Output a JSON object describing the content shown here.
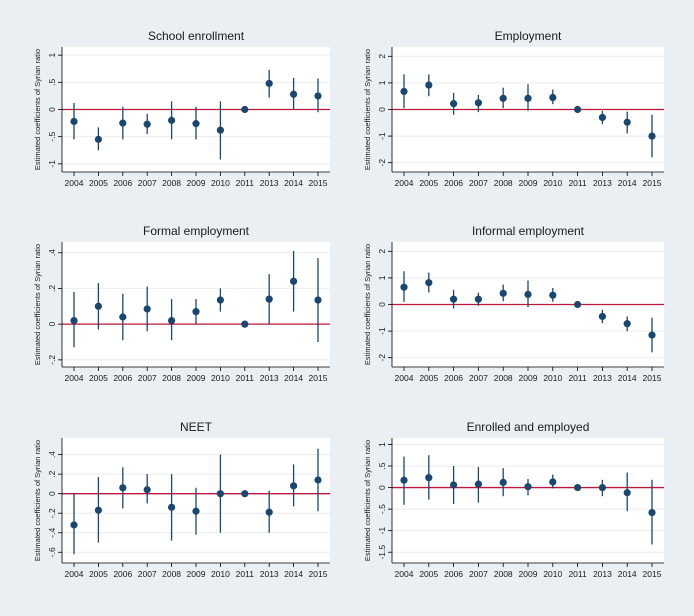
{
  "chart_data": [
    {
      "type": "errorbar",
      "title": "School enrollment",
      "ylabel": "Estimated coefficients of Syrian ratio",
      "xlabel": "",
      "ylim": [
        -1.15,
        1.15
      ],
      "yticks": [
        -1,
        -0.5,
        0,
        0.5,
        1
      ],
      "ytick_labels": [
        "-1",
        "-.5",
        "0",
        ".5",
        "1"
      ],
      "categories": [
        "2004",
        "2005",
        "2006",
        "2007",
        "2008",
        "2009",
        "2010",
        "2011",
        "2013",
        "2014",
        "2015"
      ],
      "values": [
        -0.22,
        -0.55,
        -0.25,
        -0.27,
        -0.2,
        -0.26,
        -0.38,
        0.0,
        0.48,
        0.28,
        0.25
      ],
      "lower": [
        -0.55,
        -0.75,
        -0.55,
        -0.45,
        -0.55,
        -0.55,
        -0.92,
        0.0,
        0.22,
        0.0,
        -0.05
      ],
      "upper": [
        0.12,
        -0.33,
        0.05,
        -0.08,
        0.15,
        0.05,
        0.15,
        0.0,
        0.73,
        0.58,
        0.57
      ],
      "reference_line": 0
    },
    {
      "type": "errorbar",
      "title": "Employment",
      "ylabel": "Estimated coefficients of Syrian ratio",
      "xlabel": "",
      "ylim": [
        -2.35,
        2.35
      ],
      "yticks": [
        -2,
        -1,
        0,
        1,
        2
      ],
      "ytick_labels": [
        "-2",
        "-1",
        "0",
        "1",
        "2"
      ],
      "categories": [
        "2004",
        "2005",
        "2006",
        "2007",
        "2008",
        "2009",
        "2010",
        "2011",
        "2013",
        "2014",
        "2015"
      ],
      "values": [
        0.68,
        0.92,
        0.22,
        0.25,
        0.42,
        0.42,
        0.45,
        0.0,
        -0.3,
        -0.48,
        -1.0
      ],
      "lower": [
        0.05,
        0.5,
        -0.2,
        -0.1,
        0.05,
        -0.05,
        0.2,
        0.0,
        -0.55,
        -0.9,
        -1.8
      ],
      "upper": [
        1.32,
        1.32,
        0.62,
        0.55,
        0.82,
        0.95,
        0.75,
        0.0,
        -0.05,
        -0.08,
        -0.2
      ],
      "reference_line": 0
    },
    {
      "type": "errorbar",
      "title": "Formal employment",
      "ylabel": "Estimated coefficients of Syrian ratio",
      "xlabel": "",
      "ylim": [
        -0.24,
        0.46
      ],
      "yticks": [
        -0.2,
        0,
        0.2,
        0.4
      ],
      "ytick_labels": [
        "-.2",
        "0",
        ".2",
        ".4"
      ],
      "categories": [
        "2004",
        "2005",
        "2006",
        "2007",
        "2008",
        "2009",
        "2010",
        "2011",
        "2013",
        "2014",
        "2015"
      ],
      "values": [
        0.02,
        0.1,
        0.04,
        0.085,
        0.02,
        0.07,
        0.135,
        0.0,
        0.14,
        0.24,
        0.135
      ],
      "lower": [
        -0.13,
        -0.03,
        -0.09,
        -0.04,
        -0.09,
        0.0,
        0.07,
        0.0,
        0.0,
        0.07,
        -0.1
      ],
      "upper": [
        0.18,
        0.23,
        0.17,
        0.21,
        0.14,
        0.14,
        0.2,
        0.0,
        0.28,
        0.41,
        0.37
      ],
      "reference_line": 0
    },
    {
      "type": "errorbar",
      "title": "Informal employment",
      "ylabel": "Estimated coefficients of Syrian ratio",
      "xlabel": "",
      "ylim": [
        -2.35,
        2.35
      ],
      "yticks": [
        -2,
        -1,
        0,
        1,
        2
      ],
      "ytick_labels": [
        "-2",
        "-1",
        "0",
        "1",
        "2"
      ],
      "categories": [
        "2004",
        "2005",
        "2006",
        "2007",
        "2008",
        "2009",
        "2010",
        "2011",
        "2013",
        "2014",
        "2015"
      ],
      "values": [
        0.65,
        0.82,
        0.2,
        0.2,
        0.42,
        0.38,
        0.35,
        0.0,
        -0.45,
        -0.72,
        -1.15
      ],
      "lower": [
        0.1,
        0.45,
        -0.15,
        -0.05,
        0.12,
        -0.1,
        0.1,
        0.0,
        -0.7,
        -1.0,
        -1.8
      ],
      "upper": [
        1.25,
        1.2,
        0.55,
        0.45,
        0.75,
        0.9,
        0.62,
        0.0,
        -0.2,
        -0.45,
        -0.5
      ],
      "reference_line": 0
    },
    {
      "type": "errorbar",
      "title": "NEET",
      "ylabel": "Estimated coefficients of Syrian ratio",
      "xlabel": "",
      "ylim": [
        -0.71,
        0.57
      ],
      "yticks": [
        -0.6,
        -0.4,
        -0.2,
        0,
        0.2,
        0.4
      ],
      "ytick_labels": [
        "-.6",
        "-.4",
        "-.2",
        "0",
        ".2",
        ".4"
      ],
      "categories": [
        "2004",
        "2005",
        "2006",
        "2007",
        "2008",
        "2009",
        "2010",
        "2011",
        "2013",
        "2014",
        "2015"
      ],
      "values": [
        -0.32,
        -0.17,
        0.06,
        0.04,
        -0.14,
        -0.18,
        0.0,
        0.0,
        -0.19,
        0.08,
        0.14
      ],
      "lower": [
        -0.62,
        -0.5,
        -0.15,
        -0.1,
        -0.48,
        -0.42,
        -0.4,
        0.0,
        -0.4,
        -0.13,
        -0.18
      ],
      "upper": [
        0.0,
        0.17,
        0.27,
        0.2,
        0.2,
        0.06,
        0.4,
        0.0,
        0.03,
        0.3,
        0.46
      ],
      "reference_line": 0
    },
    {
      "type": "errorbar",
      "title": "Enrolled and employed",
      "ylabel": "Estimated coefficients of Syrian ratio",
      "xlabel": "",
      "ylim": [
        -1.75,
        1.15
      ],
      "yticks": [
        -1.5,
        -1,
        -0.5,
        0,
        0.5,
        1
      ],
      "ytick_labels": [
        "-1.5",
        "-1",
        "-.5",
        "0",
        ".5",
        "1"
      ],
      "categories": [
        "2004",
        "2005",
        "2006",
        "2007",
        "2008",
        "2009",
        "2010",
        "2011",
        "2013",
        "2014",
        "2015"
      ],
      "values": [
        0.17,
        0.23,
        0.06,
        0.08,
        0.12,
        0.02,
        0.13,
        0.0,
        0.0,
        -0.12,
        -0.58
      ],
      "lower": [
        -0.4,
        -0.28,
        -0.38,
        -0.35,
        -0.2,
        -0.18,
        -0.02,
        0.0,
        -0.2,
        -0.55,
        -1.32
      ],
      "upper": [
        0.72,
        0.75,
        0.5,
        0.48,
        0.45,
        0.2,
        0.3,
        0.0,
        0.18,
        0.35,
        0.18
      ],
      "reference_line": 0
    }
  ],
  "colors": {
    "background": "#e9eff2",
    "plot_background": "#ffffff",
    "marker": "#1a476f",
    "reference_line": "#c0163a",
    "grid": "#ebebeb",
    "axis": "#000000"
  }
}
